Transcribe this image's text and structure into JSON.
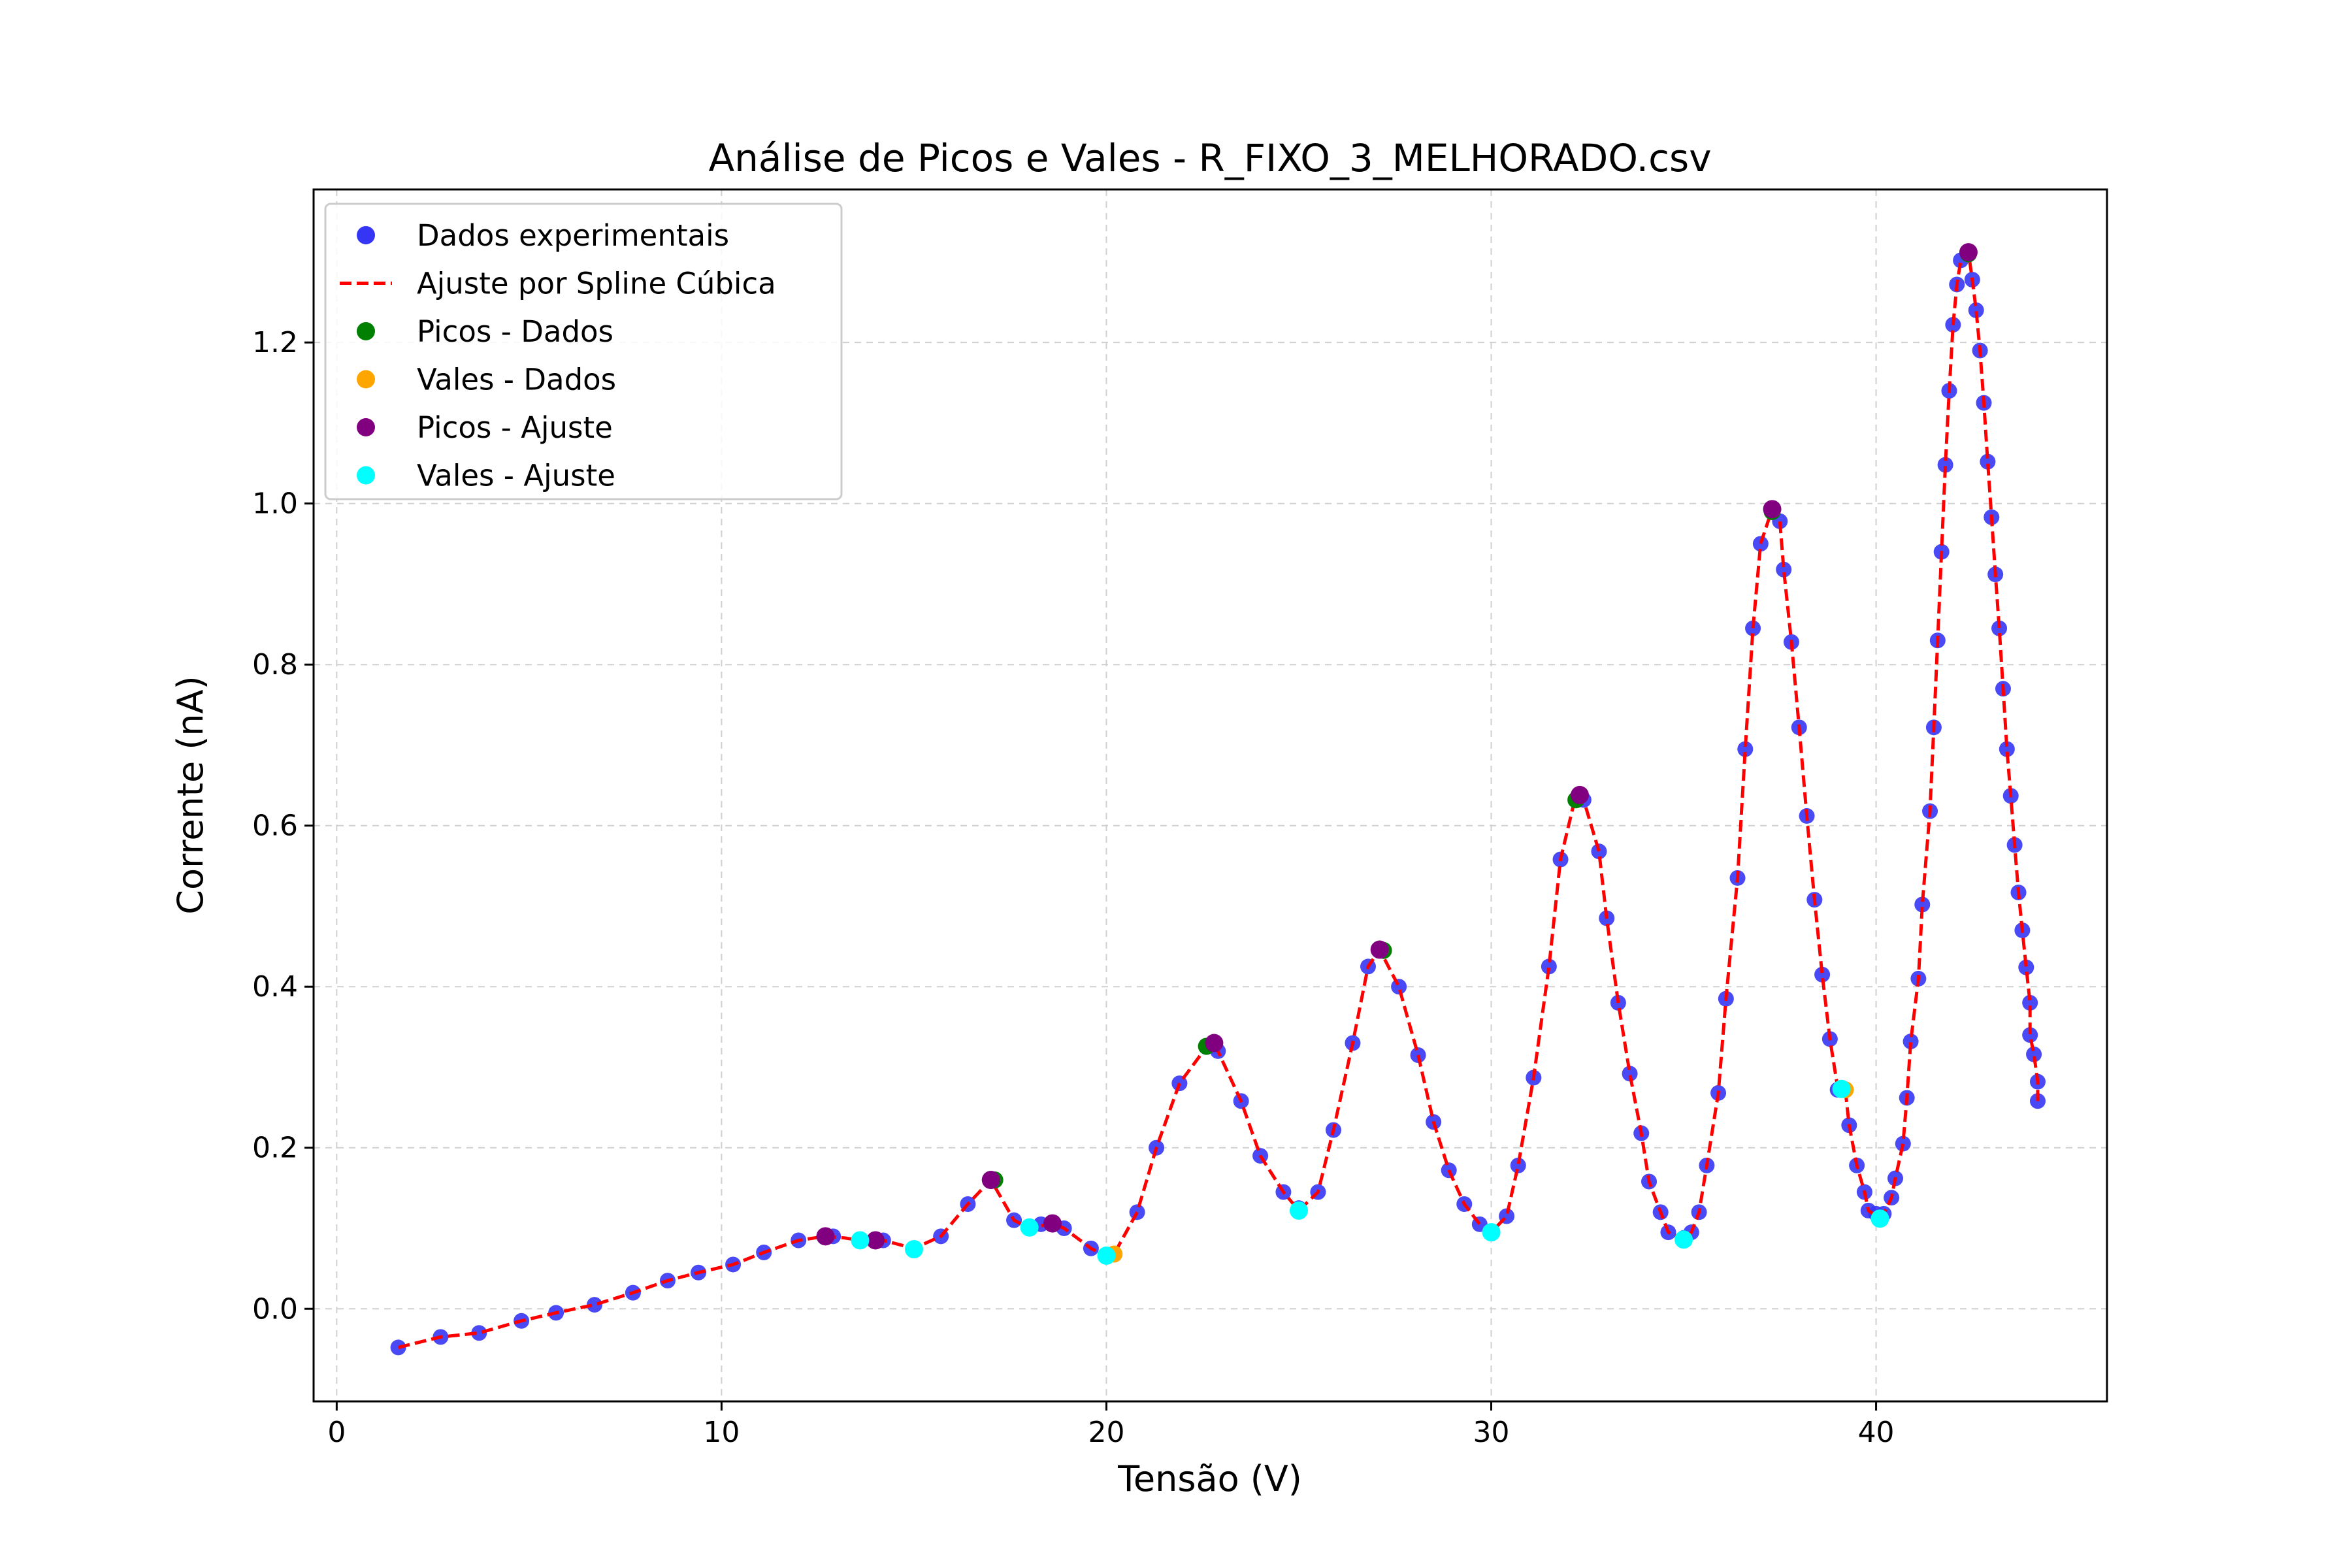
{
  "chart_data": {
    "type": "scatter",
    "title": "Análise de Picos e Vales - R_FIXO_3_MELHORADO.csv",
    "xlabel": "Tensão (V)",
    "ylabel": "Corrente (nA)",
    "xlim": [
      -0.6,
      46.0
    ],
    "ylim": [
      -0.115,
      1.39
    ],
    "x_ticks": [
      0,
      10,
      20,
      30,
      40
    ],
    "x_tick_labels": [
      "0",
      "10",
      "20",
      "30",
      "40"
    ],
    "y_ticks": [
      0.0,
      0.2,
      0.4,
      0.6,
      0.8,
      1.0,
      1.2
    ],
    "y_tick_labels": [
      "0.0",
      "0.2",
      "0.4",
      "0.6",
      "0.8",
      "1.0",
      "1.2"
    ],
    "grid": true,
    "legend_position": "top-left",
    "colors": {
      "data": "#3333ff",
      "spline": "#ff0000",
      "peaks_data": "#008000",
      "valleys_data": "#ffa500",
      "peaks_fit": "#800080",
      "valleys_fit": "#00ffff",
      "grid": "#d0d0d0"
    },
    "series": [
      {
        "name": "Dados experimentais",
        "kind": "scatter",
        "points": [
          [
            1.6,
            -0.048
          ],
          [
            2.7,
            -0.035
          ],
          [
            3.7,
            -0.03
          ],
          [
            4.8,
            -0.015
          ],
          [
            5.7,
            -0.005
          ],
          [
            6.7,
            0.005
          ],
          [
            7.7,
            0.02
          ],
          [
            8.6,
            0.035
          ],
          [
            9.4,
            0.045
          ],
          [
            10.3,
            0.055
          ],
          [
            11.1,
            0.07
          ],
          [
            12.0,
            0.085
          ],
          [
            12.9,
            0.09
          ],
          [
            13.6,
            0.085
          ],
          [
            14.2,
            0.085
          ],
          [
            15.0,
            0.075
          ],
          [
            15.7,
            0.09
          ],
          [
            16.4,
            0.13
          ],
          [
            17.1,
            0.16
          ],
          [
            17.6,
            0.11
          ],
          [
            18.3,
            0.105
          ],
          [
            18.9,
            0.1
          ],
          [
            19.6,
            0.075
          ],
          [
            20.2,
            0.068
          ],
          [
            20.8,
            0.12
          ],
          [
            21.3,
            0.2
          ],
          [
            21.9,
            0.28
          ],
          [
            22.6,
            0.325
          ],
          [
            22.9,
            0.32
          ],
          [
            23.5,
            0.258
          ],
          [
            24.0,
            0.19
          ],
          [
            24.6,
            0.145
          ],
          [
            25.0,
            0.125
          ],
          [
            25.5,
            0.145
          ],
          [
            25.9,
            0.222
          ],
          [
            26.4,
            0.33
          ],
          [
            26.8,
            0.425
          ],
          [
            27.2,
            0.445
          ],
          [
            27.6,
            0.4
          ],
          [
            28.1,
            0.315
          ],
          [
            28.5,
            0.232
          ],
          [
            28.9,
            0.172
          ],
          [
            29.3,
            0.13
          ],
          [
            29.7,
            0.105
          ],
          [
            30.0,
            0.095
          ],
          [
            30.4,
            0.115
          ],
          [
            30.7,
            0.178
          ],
          [
            31.1,
            0.287
          ],
          [
            31.5,
            0.425
          ],
          [
            31.8,
            0.558
          ],
          [
            32.2,
            0.632
          ],
          [
            32.4,
            0.632
          ],
          [
            32.8,
            0.568
          ],
          [
            33.0,
            0.485
          ],
          [
            33.3,
            0.38
          ],
          [
            33.6,
            0.292
          ],
          [
            33.9,
            0.218
          ],
          [
            34.1,
            0.158
          ],
          [
            34.4,
            0.12
          ],
          [
            34.6,
            0.095
          ],
          [
            35.0,
            0.088
          ],
          [
            35.2,
            0.095
          ],
          [
            35.4,
            0.12
          ],
          [
            35.6,
            0.178
          ],
          [
            35.9,
            0.268
          ],
          [
            36.1,
            0.385
          ],
          [
            36.4,
            0.535
          ],
          [
            36.6,
            0.695
          ],
          [
            36.8,
            0.845
          ],
          [
            37.0,
            0.95
          ],
          [
            37.3,
            0.99
          ],
          [
            37.5,
            0.978
          ],
          [
            37.6,
            0.918
          ],
          [
            37.8,
            0.828
          ],
          [
            38.0,
            0.722
          ],
          [
            38.2,
            0.612
          ],
          [
            38.4,
            0.508
          ],
          [
            38.6,
            0.415
          ],
          [
            38.8,
            0.335
          ],
          [
            39.0,
            0.272
          ],
          [
            39.2,
            0.272
          ],
          [
            39.3,
            0.228
          ],
          [
            39.5,
            0.178
          ],
          [
            39.7,
            0.145
          ],
          [
            39.8,
            0.122
          ],
          [
            40.0,
            0.118
          ],
          [
            40.2,
            0.118
          ],
          [
            40.4,
            0.138
          ],
          [
            40.5,
            0.162
          ],
          [
            40.7,
            0.205
          ],
          [
            40.8,
            0.262
          ],
          [
            40.9,
            0.332
          ],
          [
            41.1,
            0.41
          ],
          [
            41.2,
            0.502
          ],
          [
            41.4,
            0.618
          ],
          [
            41.5,
            0.722
          ],
          [
            41.6,
            0.83
          ],
          [
            41.7,
            0.94
          ],
          [
            41.8,
            1.048
          ],
          [
            41.9,
            1.14
          ],
          [
            42.0,
            1.222
          ],
          [
            42.1,
            1.272
          ],
          [
            42.2,
            1.302
          ],
          [
            42.4,
            1.31
          ],
          [
            42.5,
            1.278
          ],
          [
            42.6,
            1.24
          ],
          [
            42.7,
            1.19
          ],
          [
            42.8,
            1.125
          ],
          [
            42.9,
            1.052
          ],
          [
            43.0,
            0.983
          ],
          [
            43.1,
            0.912
          ],
          [
            43.2,
            0.845
          ],
          [
            43.3,
            0.77
          ],
          [
            43.4,
            0.695
          ],
          [
            43.5,
            0.637
          ],
          [
            43.6,
            0.576
          ],
          [
            43.7,
            0.517
          ],
          [
            43.8,
            0.47
          ],
          [
            43.9,
            0.424
          ],
          [
            44.0,
            0.38
          ],
          [
            44.0,
            0.34
          ],
          [
            44.1,
            0.316
          ],
          [
            44.2,
            0.282
          ],
          [
            44.2,
            0.258
          ]
        ]
      },
      {
        "name": "Ajuste por Spline Cúbica",
        "kind": "line",
        "points": [
          [
            1.6,
            -0.048
          ],
          [
            2.7,
            -0.035
          ],
          [
            3.7,
            -0.03
          ],
          [
            4.8,
            -0.015
          ],
          [
            5.7,
            -0.005
          ],
          [
            6.7,
            0.005
          ],
          [
            7.7,
            0.02
          ],
          [
            8.6,
            0.035
          ],
          [
            9.4,
            0.045
          ],
          [
            10.3,
            0.055
          ],
          [
            11.1,
            0.07
          ],
          [
            12.0,
            0.085
          ],
          [
            12.7,
            0.09
          ],
          [
            13.2,
            0.088
          ],
          [
            13.6,
            0.085
          ],
          [
            14.2,
            0.085
          ],
          [
            15.0,
            0.075
          ],
          [
            15.7,
            0.09
          ],
          [
            16.4,
            0.13
          ],
          [
            17.0,
            0.16
          ],
          [
            17.6,
            0.11
          ],
          [
            18.0,
            0.1
          ],
          [
            18.6,
            0.106
          ],
          [
            18.9,
            0.1
          ],
          [
            19.6,
            0.075
          ],
          [
            20.0,
            0.065
          ],
          [
            20.2,
            0.068
          ],
          [
            20.8,
            0.12
          ],
          [
            21.3,
            0.2
          ],
          [
            21.9,
            0.28
          ],
          [
            22.6,
            0.325
          ],
          [
            22.8,
            0.33
          ],
          [
            23.5,
            0.258
          ],
          [
            24.0,
            0.19
          ],
          [
            24.6,
            0.145
          ],
          [
            25.0,
            0.122
          ],
          [
            25.5,
            0.145
          ],
          [
            25.9,
            0.222
          ],
          [
            26.4,
            0.33
          ],
          [
            26.8,
            0.425
          ],
          [
            27.1,
            0.446
          ],
          [
            27.6,
            0.4
          ],
          [
            28.1,
            0.315
          ],
          [
            28.5,
            0.232
          ],
          [
            28.9,
            0.172
          ],
          [
            29.3,
            0.13
          ],
          [
            29.7,
            0.105
          ],
          [
            30.0,
            0.095
          ],
          [
            30.4,
            0.115
          ],
          [
            30.7,
            0.178
          ],
          [
            31.1,
            0.287
          ],
          [
            31.5,
            0.425
          ],
          [
            31.8,
            0.558
          ],
          [
            32.2,
            0.638
          ],
          [
            32.4,
            0.632
          ],
          [
            32.8,
            0.568
          ],
          [
            33.0,
            0.485
          ],
          [
            33.3,
            0.38
          ],
          [
            33.6,
            0.292
          ],
          [
            33.9,
            0.218
          ],
          [
            34.1,
            0.158
          ],
          [
            34.4,
            0.12
          ],
          [
            34.6,
            0.095
          ],
          [
            35.0,
            0.086
          ],
          [
            35.2,
            0.095
          ],
          [
            35.4,
            0.12
          ],
          [
            35.6,
            0.178
          ],
          [
            35.9,
            0.268
          ],
          [
            36.1,
            0.385
          ],
          [
            36.4,
            0.535
          ],
          [
            36.6,
            0.695
          ],
          [
            36.8,
            0.845
          ],
          [
            37.0,
            0.95
          ],
          [
            37.3,
            0.993
          ],
          [
            37.5,
            0.978
          ],
          [
            37.6,
            0.918
          ],
          [
            37.8,
            0.828
          ],
          [
            38.0,
            0.722
          ],
          [
            38.2,
            0.612
          ],
          [
            38.4,
            0.508
          ],
          [
            38.6,
            0.415
          ],
          [
            38.8,
            0.335
          ],
          [
            39.0,
            0.275
          ],
          [
            39.2,
            0.272
          ],
          [
            39.3,
            0.228
          ],
          [
            39.5,
            0.178
          ],
          [
            39.7,
            0.145
          ],
          [
            39.8,
            0.122
          ],
          [
            40.1,
            0.112
          ],
          [
            40.2,
            0.118
          ],
          [
            40.4,
            0.138
          ],
          [
            40.5,
            0.162
          ],
          [
            40.7,
            0.205
          ],
          [
            40.8,
            0.262
          ],
          [
            40.9,
            0.332
          ],
          [
            41.1,
            0.41
          ],
          [
            41.2,
            0.502
          ],
          [
            41.4,
            0.618
          ],
          [
            41.5,
            0.722
          ],
          [
            41.6,
            0.83
          ],
          [
            41.7,
            0.94
          ],
          [
            41.8,
            1.048
          ],
          [
            41.9,
            1.14
          ],
          [
            42.0,
            1.222
          ],
          [
            42.1,
            1.272
          ],
          [
            42.2,
            1.302
          ],
          [
            42.4,
            1.312
          ],
          [
            42.5,
            1.278
          ],
          [
            42.6,
            1.24
          ],
          [
            42.7,
            1.19
          ],
          [
            42.8,
            1.125
          ],
          [
            42.9,
            1.052
          ],
          [
            43.0,
            0.983
          ],
          [
            43.1,
            0.912
          ],
          [
            43.2,
            0.845
          ],
          [
            43.3,
            0.77
          ],
          [
            43.4,
            0.695
          ],
          [
            43.5,
            0.637
          ],
          [
            43.6,
            0.576
          ],
          [
            43.7,
            0.517
          ],
          [
            43.8,
            0.47
          ],
          [
            43.9,
            0.424
          ],
          [
            44.0,
            0.38
          ],
          [
            44.0,
            0.34
          ],
          [
            44.1,
            0.316
          ],
          [
            44.2,
            0.282
          ],
          [
            44.2,
            0.258
          ]
        ]
      },
      {
        "name": "Picos - Dados",
        "kind": "scatter",
        "points": [
          [
            17.1,
            0.16
          ],
          [
            22.6,
            0.326
          ],
          [
            27.2,
            0.445
          ],
          [
            32.2,
            0.632
          ],
          [
            37.3,
            0.99
          ],
          [
            42.4,
            1.31
          ]
        ]
      },
      {
        "name": "Vales - Dados",
        "kind": "scatter",
        "points": [
          [
            20.2,
            0.068
          ],
          [
            39.2,
            0.272
          ]
        ]
      },
      {
        "name": "Picos - Ajuste",
        "kind": "scatter",
        "points": [
          [
            12.7,
            0.09
          ],
          [
            14.0,
            0.085
          ],
          [
            17.0,
            0.16
          ],
          [
            18.6,
            0.106
          ],
          [
            22.8,
            0.33
          ],
          [
            27.1,
            0.446
          ],
          [
            32.3,
            0.638
          ],
          [
            37.3,
            0.993
          ],
          [
            42.4,
            1.312
          ]
        ]
      },
      {
        "name": "Vales - Ajuste",
        "kind": "scatter",
        "points": [
          [
            13.6,
            0.085
          ],
          [
            15.0,
            0.074
          ],
          [
            18.0,
            0.101
          ],
          [
            20.0,
            0.066
          ],
          [
            25.0,
            0.122
          ],
          [
            30.0,
            0.095
          ],
          [
            35.0,
            0.086
          ],
          [
            39.1,
            0.273
          ],
          [
            40.1,
            0.112
          ]
        ]
      }
    ]
  }
}
